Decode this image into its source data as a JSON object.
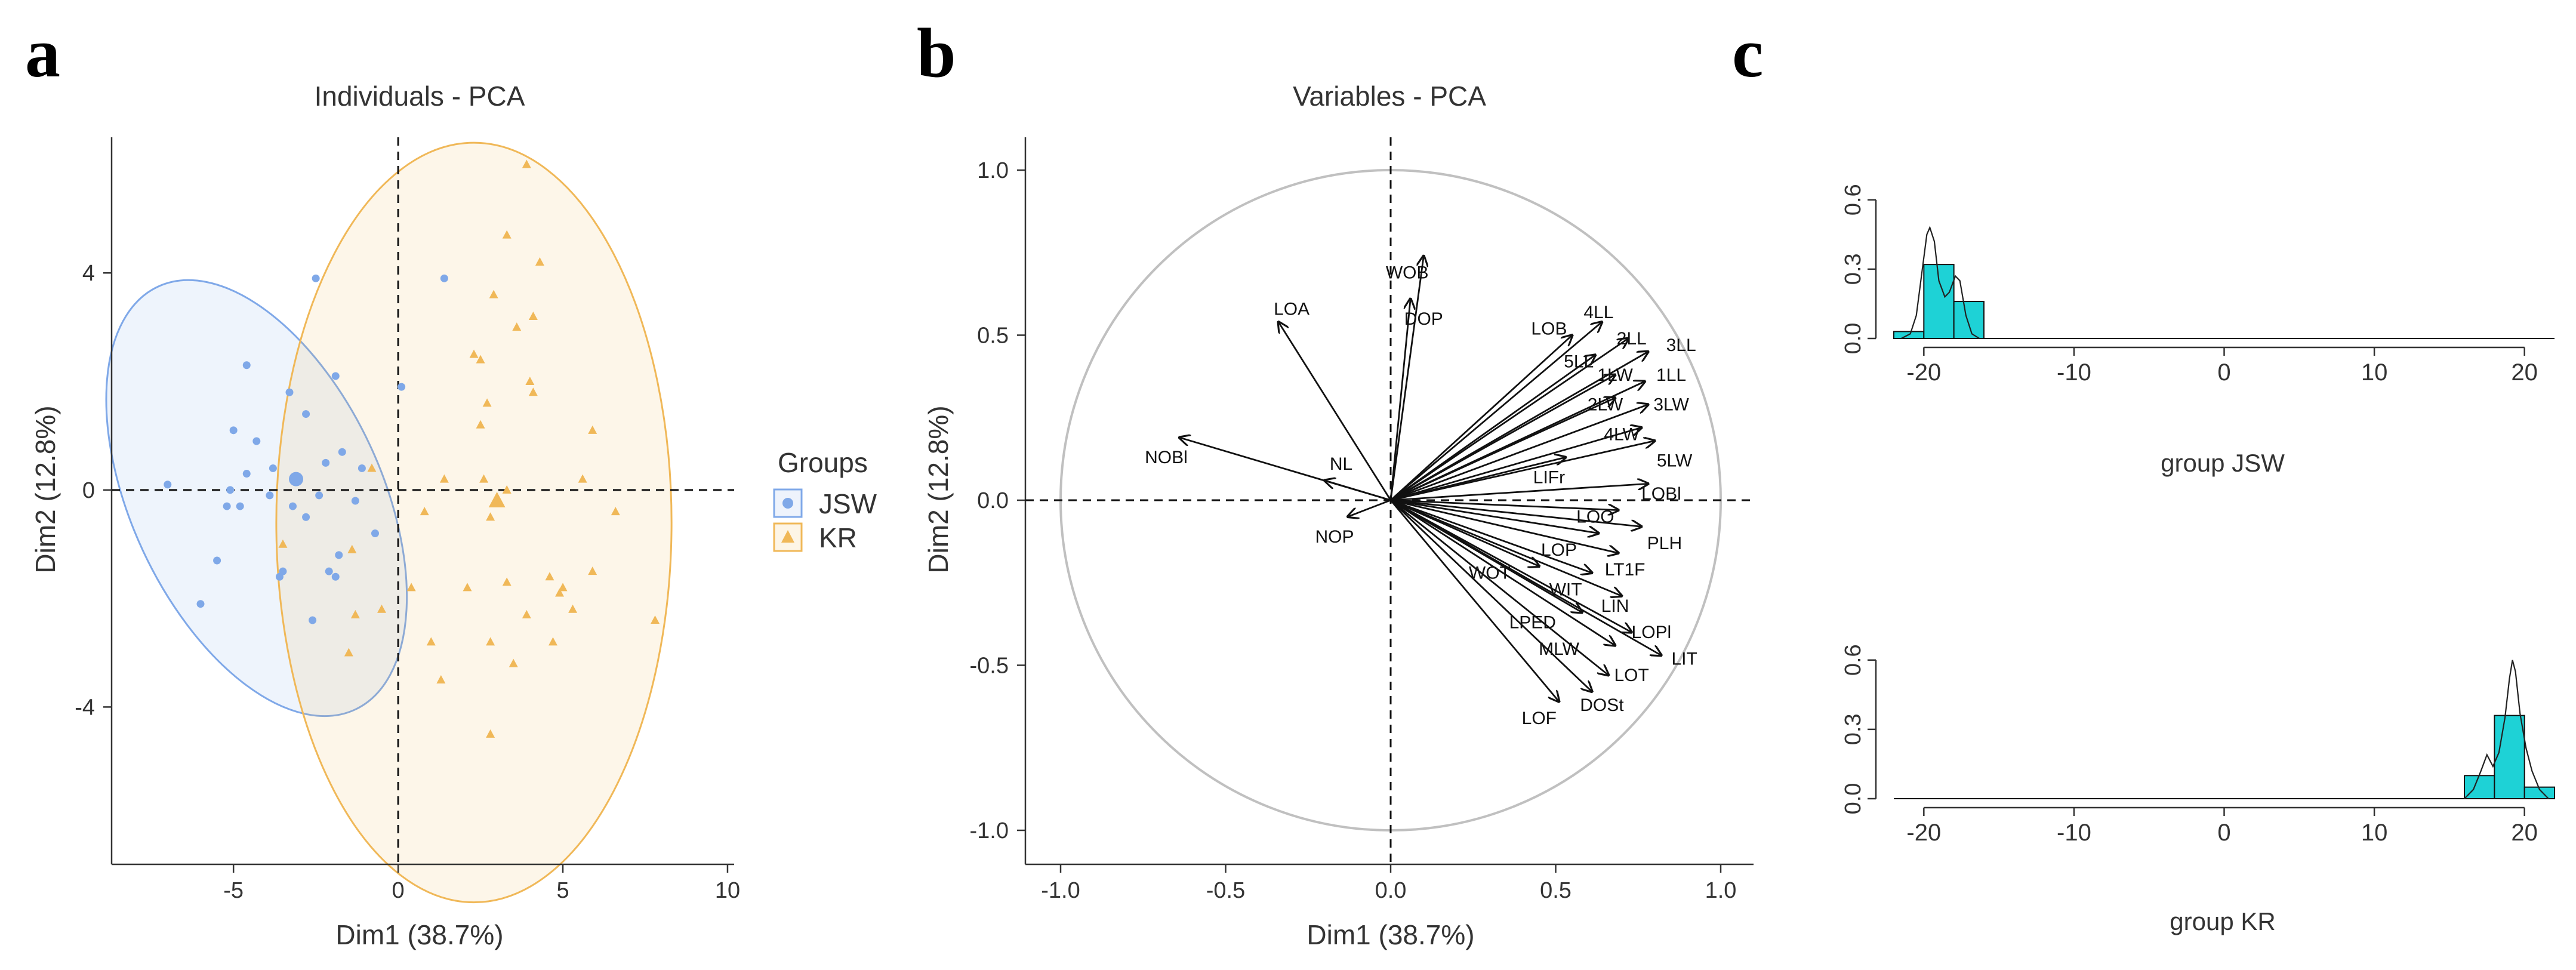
{
  "panel_labels": [
    "a",
    "b",
    "c"
  ],
  "chart_data": [
    {
      "type": "scatter",
      "title": "Individuals - PCA",
      "xlabel": "Dim1 (38.7%)",
      "ylabel": "Dim2 (12.8%)",
      "xlim": [
        -8.7,
        10.2
      ],
      "ylim": [
        -6.9,
        6.5
      ],
      "xticks": [
        -5,
        0,
        5,
        10
      ],
      "yticks": [
        -4,
        0,
        4
      ],
      "legend": {
        "title": "Groups",
        "position": "right"
      },
      "series": [
        {
          "name": "JSW",
          "color": "#7FA8E8",
          "marker": "circle",
          "centroid": [
            -3.1,
            0.2
          ],
          "ellipse": {
            "center": [
              -4.3,
              -0.15
            ],
            "rx": 3.8,
            "ry": 4.3,
            "angle_deg": 25
          },
          "points": [
            [
              -2.5,
              3.9
            ],
            [
              1.4,
              3.9
            ],
            [
              -4.6,
              2.3
            ],
            [
              -3.3,
              1.8
            ],
            [
              -1.9,
              2.1
            ],
            [
              0.1,
              1.9
            ],
            [
              -2.8,
              1.4
            ],
            [
              -5.0,
              1.1
            ],
            [
              -4.3,
              0.9
            ],
            [
              -1.7,
              0.7
            ],
            [
              -2.2,
              0.5
            ],
            [
              -3.8,
              0.4
            ],
            [
              -4.6,
              0.3
            ],
            [
              -5.1,
              0.0
            ],
            [
              -7.0,
              0.1
            ],
            [
              -3.9,
              -0.1
            ],
            [
              -2.4,
              -0.1
            ],
            [
              -1.3,
              -0.2
            ],
            [
              -3.2,
              -0.3
            ],
            [
              -5.2,
              -0.3
            ],
            [
              -4.8,
              -0.3
            ],
            [
              -1.8,
              -1.2
            ],
            [
              -3.5,
              -1.5
            ],
            [
              -2.1,
              -1.5
            ],
            [
              -1.9,
              -1.6
            ],
            [
              -5.5,
              -1.3
            ],
            [
              -3.6,
              -1.6
            ],
            [
              -0.7,
              -0.8
            ],
            [
              -6.0,
              -2.1
            ],
            [
              -2.6,
              -2.4
            ],
            [
              -2.8,
              -0.5
            ],
            [
              -1.1,
              0.4
            ]
          ]
        },
        {
          "name": "KR",
          "color": "#F0B858",
          "marker": "triangle",
          "centroid": [
            3.0,
            -0.2
          ],
          "ellipse": {
            "center": [
              2.3,
              -0.6
            ],
            "rx": 6.0,
            "ry": 7.0,
            "angle_deg": 0
          },
          "points": [
            [
              3.9,
              6.0
            ],
            [
              3.3,
              4.7
            ],
            [
              4.3,
              4.2
            ],
            [
              2.9,
              3.6
            ],
            [
              4.1,
              3.2
            ],
            [
              3.6,
              3.0
            ],
            [
              2.3,
              2.5
            ],
            [
              2.5,
              2.4
            ],
            [
              4.0,
              2.0
            ],
            [
              4.1,
              1.8
            ],
            [
              2.7,
              1.6
            ],
            [
              5.9,
              1.1
            ],
            [
              2.5,
              1.2
            ],
            [
              -0.8,
              0.4
            ],
            [
              1.4,
              0.2
            ],
            [
              2.6,
              0.2
            ],
            [
              5.6,
              0.2
            ],
            [
              3.3,
              0.0
            ],
            [
              0.8,
              -0.4
            ],
            [
              2.8,
              -0.5
            ],
            [
              6.6,
              -0.4
            ],
            [
              -3.5,
              -1.0
            ],
            [
              -1.4,
              -1.1
            ],
            [
              4.6,
              -1.6
            ],
            [
              5.0,
              -1.8
            ],
            [
              4.9,
              -1.9
            ],
            [
              0.4,
              -1.8
            ],
            [
              2.1,
              -1.8
            ],
            [
              3.3,
              -1.7
            ],
            [
              5.9,
              -1.5
            ],
            [
              -0.5,
              -2.2
            ],
            [
              -1.3,
              -2.3
            ],
            [
              3.9,
              -2.3
            ],
            [
              5.3,
              -2.2
            ],
            [
              7.8,
              -2.4
            ],
            [
              1.0,
              -2.8
            ],
            [
              2.8,
              -2.8
            ],
            [
              4.7,
              -2.8
            ],
            [
              -1.5,
              -3.0
            ],
            [
              3.5,
              -3.2
            ],
            [
              2.8,
              -4.5
            ],
            [
              1.3,
              -3.5
            ]
          ]
        }
      ]
    },
    {
      "type": "biplot",
      "title": "Variables - PCA",
      "xlabel": "Dim1 (38.7%)",
      "ylabel": "Dim2 (12.8%)",
      "xlim": [
        -1.1,
        1.1
      ],
      "ylim": [
        -1.1,
        1.1
      ],
      "xticks": [
        "-1.0",
        "-0.5",
        "0.0",
        "0.5",
        "1.0"
      ],
      "yticks": [
        "-1.0",
        "-0.5",
        "0.0",
        "0.5",
        "1.0"
      ],
      "circle_radius": 1.0,
      "vectors": [
        {
          "name": "WOB",
          "x": 0.1,
          "y": 0.74,
          "lx": 0.05,
          "ly": 0.69
        },
        {
          "name": "DOP",
          "x": 0.06,
          "y": 0.61,
          "lx": 0.1,
          "ly": 0.55
        },
        {
          "name": "LOA",
          "x": -0.34,
          "y": 0.54,
          "lx": -0.3,
          "ly": 0.58
        },
        {
          "name": "NOBl",
          "x": -0.64,
          "y": 0.19,
          "lx": -0.68,
          "ly": 0.13
        },
        {
          "name": "NL",
          "x": -0.2,
          "y": 0.06,
          "lx": -0.15,
          "ly": 0.11
        },
        {
          "name": "NOP",
          "x": -0.13,
          "y": -0.05,
          "lx": -0.17,
          "ly": -0.11
        },
        {
          "name": "LOB",
          "x": 0.55,
          "y": 0.5,
          "lx": 0.48,
          "ly": 0.52
        },
        {
          "name": "4LL",
          "x": 0.64,
          "y": 0.54,
          "lx": 0.63,
          "ly": 0.57
        },
        {
          "name": "2LL",
          "x": 0.72,
          "y": 0.49,
          "lx": 0.73,
          "ly": 0.49
        },
        {
          "name": "5LL",
          "x": 0.62,
          "y": 0.44,
          "lx": 0.57,
          "ly": 0.42
        },
        {
          "name": "3LL",
          "x": 0.78,
          "y": 0.45,
          "lx": 0.88,
          "ly": 0.47
        },
        {
          "name": "1LW",
          "x": 0.68,
          "y": 0.38,
          "lx": 0.68,
          "ly": 0.38
        },
        {
          "name": "1LL",
          "x": 0.77,
          "y": 0.36,
          "lx": 0.85,
          "ly": 0.38
        },
        {
          "name": "2LW",
          "x": 0.68,
          "y": 0.31,
          "lx": 0.65,
          "ly": 0.29
        },
        {
          "name": "3LW",
          "x": 0.78,
          "y": 0.29,
          "lx": 0.85,
          "ly": 0.29
        },
        {
          "name": "4LW",
          "x": 0.76,
          "y": 0.22,
          "lx": 0.7,
          "ly": 0.2
        },
        {
          "name": "5LW",
          "x": 0.8,
          "y": 0.18,
          "lx": 0.86,
          "ly": 0.12
        },
        {
          "name": "LIFr",
          "x": 0.53,
          "y": 0.13,
          "lx": 0.48,
          "ly": 0.07
        },
        {
          "name": "LOBl",
          "x": 0.78,
          "y": 0.05,
          "lx": 0.82,
          "ly": 0.02
        },
        {
          "name": "LOO",
          "x": 0.69,
          "y": -0.03,
          "lx": 0.62,
          "ly": -0.05
        },
        {
          "name": "PLH",
          "x": 0.76,
          "y": -0.08,
          "lx": 0.83,
          "ly": -0.13
        },
        {
          "name": "LOP",
          "x": 0.63,
          "y": -0.1,
          "lx": 0.51,
          "ly": -0.15
        },
        {
          "name": "LT1F",
          "x": 0.69,
          "y": -0.16,
          "lx": 0.71,
          "ly": -0.21
        },
        {
          "name": "WOT",
          "x": 0.45,
          "y": -0.2,
          "lx": 0.3,
          "ly": -0.22
        },
        {
          "name": "WIT",
          "x": 0.61,
          "y": -0.22,
          "lx": 0.53,
          "ly": -0.27
        },
        {
          "name": "LIN",
          "x": 0.7,
          "y": -0.29,
          "lx": 0.68,
          "ly": -0.32
        },
        {
          "name": "LPED",
          "x": 0.58,
          "y": -0.34,
          "lx": 0.43,
          "ly": -0.37
        },
        {
          "name": "LOPl",
          "x": 0.73,
          "y": -0.4,
          "lx": 0.79,
          "ly": -0.4
        },
        {
          "name": "MLW",
          "x": 0.68,
          "y": -0.44,
          "lx": 0.51,
          "ly": -0.45
        },
        {
          "name": "LIT",
          "x": 0.82,
          "y": -0.47,
          "lx": 0.89,
          "ly": -0.48
        },
        {
          "name": "LOT",
          "x": 0.66,
          "y": -0.53,
          "lx": 0.73,
          "ly": -0.53
        },
        {
          "name": "DOSt",
          "x": 0.61,
          "y": -0.58,
          "lx": 0.64,
          "ly": -0.62
        },
        {
          "name": "LOF",
          "x": 0.51,
          "y": -0.61,
          "lx": 0.45,
          "ly": -0.66
        }
      ]
    },
    {
      "type": "histogram",
      "xlabel": "group JSW",
      "xlim": [
        -22,
        22
      ],
      "ylim": [
        0,
        0.62
      ],
      "xticks": [
        "-20",
        "-10",
        "0",
        "10",
        "20"
      ],
      "yticks": [
        "0.0",
        "0.3",
        "0.6"
      ],
      "bars": [
        {
          "x0": -22,
          "x1": -20,
          "y": 0.03
        },
        {
          "x0": -20,
          "x1": -18,
          "y": 0.32
        },
        {
          "x0": -18,
          "x1": -16,
          "y": 0.16
        }
      ],
      "density": [
        [
          -21.5,
          0.0
        ],
        [
          -20.9,
          0.02
        ],
        [
          -20.5,
          0.1
        ],
        [
          -20.1,
          0.3
        ],
        [
          -19.8,
          0.45
        ],
        [
          -19.6,
          0.48
        ],
        [
          -19.3,
          0.42
        ],
        [
          -19.0,
          0.25
        ],
        [
          -18.6,
          0.18
        ],
        [
          -18.3,
          0.2
        ],
        [
          -17.9,
          0.27
        ],
        [
          -17.6,
          0.25
        ],
        [
          -17.2,
          0.1
        ],
        [
          -16.8,
          0.02
        ],
        [
          -16.3,
          0.0
        ]
      ]
    },
    {
      "type": "histogram",
      "xlabel": "group KR",
      "xlim": [
        -22,
        22
      ],
      "ylim": [
        0,
        0.62
      ],
      "xticks": [
        "-20",
        "-10",
        "0",
        "10",
        "20"
      ],
      "yticks": [
        "0.0",
        "0.3",
        "0.6"
      ],
      "bars": [
        {
          "x0": 16,
          "x1": 18,
          "y": 0.1
        },
        {
          "x0": 18,
          "x1": 20,
          "y": 0.36
        },
        {
          "x0": 20,
          "x1": 22,
          "y": 0.05
        }
      ],
      "density": [
        [
          16.0,
          0.0
        ],
        [
          16.6,
          0.04
        ],
        [
          17.1,
          0.12
        ],
        [
          17.5,
          0.19
        ],
        [
          17.9,
          0.14
        ],
        [
          18.3,
          0.2
        ],
        [
          18.7,
          0.35
        ],
        [
          19.0,
          0.52
        ],
        [
          19.2,
          0.6
        ],
        [
          19.4,
          0.55
        ],
        [
          19.7,
          0.37
        ],
        [
          20.1,
          0.22
        ],
        [
          20.5,
          0.12
        ],
        [
          21.0,
          0.04
        ],
        [
          21.6,
          0.0
        ]
      ]
    }
  ]
}
